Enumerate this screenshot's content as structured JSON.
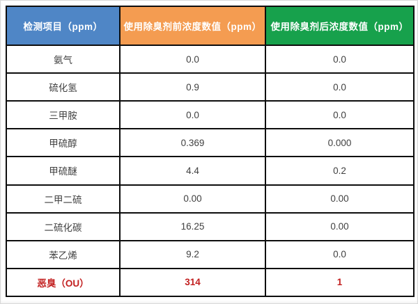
{
  "table": {
    "headers": [
      {
        "label": "检测项目（ppm）",
        "color": "#4F86C6"
      },
      {
        "label": "使用除臭剂前浓度数值（ppm）",
        "color": "#F49C51"
      },
      {
        "label": "使用除臭剂后浓度数值（ppm）",
        "color": "#17A14C"
      }
    ],
    "rows": [
      {
        "item": "氨气",
        "before": "0.0",
        "after": "0.0",
        "highlight": false
      },
      {
        "item": "硫化氢",
        "before": "0.9",
        "after": "0.0",
        "highlight": false
      },
      {
        "item": "三甲胺",
        "before": "0.0",
        "after": "0.0",
        "highlight": false
      },
      {
        "item": "甲硫醇",
        "before": "0.369",
        "after": "0.000",
        "highlight": false
      },
      {
        "item": "甲硫醚",
        "before": "4.4",
        "after": "0.2",
        "highlight": false
      },
      {
        "item": "二甲二硫",
        "before": "0.00",
        "after": "0.00",
        "highlight": false
      },
      {
        "item": "二硫化碳",
        "before": "16.25",
        "after": "0.00",
        "highlight": false
      },
      {
        "item": "苯乙烯",
        "before": "9.2",
        "after": "0.0",
        "highlight": false
      },
      {
        "item": "恶臭（OU）",
        "before": "314",
        "after": "1",
        "highlight": true
      }
    ],
    "highlight_color": "#C21F1F",
    "grid_color": "#0d0d0d"
  },
  "chart_data": {
    "type": "table",
    "title": "",
    "columns": [
      "检测项目（ppm）",
      "使用除臭剂前浓度数值（ppm）",
      "使用除臭剂后浓度数值（ppm）"
    ],
    "rows": [
      [
        "氨气",
        0.0,
        0.0
      ],
      [
        "硫化氢",
        0.9,
        0.0
      ],
      [
        "三甲胺",
        0.0,
        0.0
      ],
      [
        "甲硫醇",
        0.369,
        0.0
      ],
      [
        "甲硫醚",
        4.4,
        0.2
      ],
      [
        "二甲二硫",
        0.0,
        0.0
      ],
      [
        "二硫化碳",
        16.25,
        0.0
      ],
      [
        "苯乙烯",
        9.2,
        0.0
      ],
      [
        "恶臭（OU）",
        314,
        1
      ]
    ],
    "layout_hints": {
      "header_colors": [
        "#4F86C6",
        "#F49C51",
        "#17A14C"
      ],
      "highlight_row": "恶臭（OU）",
      "highlight_text_color": "#C21F1F",
      "grid": true
    }
  }
}
